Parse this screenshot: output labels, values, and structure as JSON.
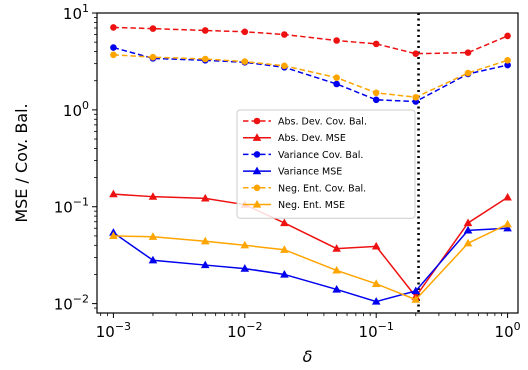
{
  "chart_data": {
    "type": "line",
    "xlabel": "δ",
    "ylabel": "MSE / Cov. Bal.",
    "xscale": "log",
    "yscale": "log",
    "xlim": [
      0.00075,
      1.2
    ],
    "ylim": [
      0.008,
      10
    ],
    "grid": false,
    "legend_position": "center",
    "x": [
      0.001,
      0.002,
      0.005,
      0.01,
      0.02,
      0.05,
      0.1,
      0.2,
      0.5,
      1.0
    ],
    "x_tick_labels": [
      {
        "value": 0.001,
        "base": "10",
        "exp": "−3"
      },
      {
        "value": 0.01,
        "base": "10",
        "exp": "−2"
      },
      {
        "value": 0.1,
        "base": "10",
        "exp": "−1"
      },
      {
        "value": 1,
        "base": "10",
        "exp": "0"
      }
    ],
    "y_tick_labels": [
      {
        "value": 0.01,
        "base": "10",
        "exp": "−2"
      },
      {
        "value": 0.1,
        "base": "10",
        "exp": "−1"
      },
      {
        "value": 1,
        "base": "10",
        "exp": "0"
      },
      {
        "value": 10,
        "base": "10",
        "exp": "1"
      }
    ],
    "vline": {
      "x": 0.21,
      "style": "dotted",
      "color": "#000000"
    },
    "series": [
      {
        "name": "Abs. Dev. Cov. Bal.",
        "color": "#ee1111",
        "marker": "circle",
        "dashed": true,
        "values": [
          7.1,
          6.9,
          6.6,
          6.4,
          6.0,
          5.2,
          4.8,
          3.8,
          3.9,
          5.8
        ]
      },
      {
        "name": "Abs. Dev. MSE",
        "color": "#ee1111",
        "marker": "triangle",
        "dashed": false,
        "values": [
          0.135,
          0.127,
          0.122,
          0.105,
          0.068,
          0.037,
          0.039,
          0.0118,
          0.068,
          0.125
        ]
      },
      {
        "name": "Variance Cov. Bal.",
        "color": "#0000ee",
        "marker": "circle",
        "dashed": true,
        "values": [
          4.4,
          3.4,
          3.25,
          3.1,
          2.75,
          1.85,
          1.27,
          1.22,
          2.35,
          2.9
        ]
      },
      {
        "name": "Variance MSE",
        "color": "#0000ee",
        "marker": "triangle",
        "dashed": false,
        "values": [
          0.054,
          0.028,
          0.025,
          0.023,
          0.02,
          0.014,
          0.0105,
          0.0135,
          0.057,
          0.06
        ]
      },
      {
        "name": "Neg. Ent. Cov. Bal.",
        "color": "#ffa500",
        "marker": "circle",
        "dashed": true,
        "values": [
          3.7,
          3.5,
          3.35,
          3.15,
          2.85,
          2.15,
          1.5,
          1.35,
          2.4,
          3.25
        ]
      },
      {
        "name": "Neg. Ent. MSE",
        "color": "#ffa500",
        "marker": "triangle",
        "dashed": false,
        "values": [
          0.05,
          0.049,
          0.044,
          0.04,
          0.036,
          0.022,
          0.016,
          0.011,
          0.042,
          0.066
        ]
      }
    ]
  }
}
